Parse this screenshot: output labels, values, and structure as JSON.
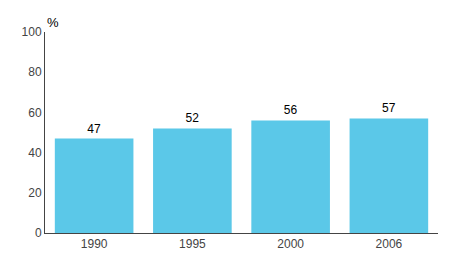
{
  "chart_data": {
    "type": "bar",
    "ylabel": "%",
    "categories": [
      "1990",
      "1995",
      "2000",
      "2006"
    ],
    "values": [
      47,
      52,
      56,
      57
    ],
    "color": "#5bc8e8",
    "ylim": [
      0,
      100
    ],
    "yticks": [
      0,
      20,
      40,
      60,
      80,
      100
    ],
    "grid": false,
    "data_labels": true
  }
}
